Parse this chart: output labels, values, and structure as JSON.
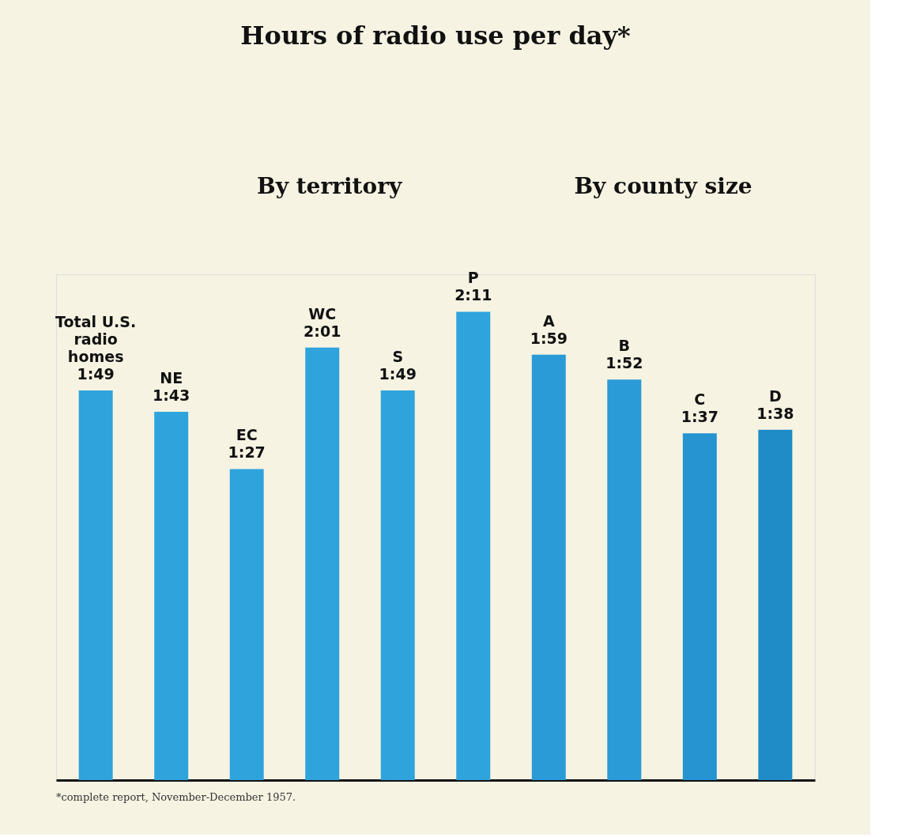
{
  "chart_data": {
    "type": "bar",
    "title": "Hours of radio use per day*",
    "categories": [
      "Total U.S. radio homes",
      "NE",
      "EC",
      "WC",
      "S",
      "P",
      "A",
      "B",
      "C",
      "D"
    ],
    "values": [
      109,
      103,
      87,
      121,
      109,
      131,
      119,
      112,
      97,
      98
    ],
    "value_labels": [
      "1:49",
      "1:43",
      "1:27",
      "2:01",
      "1:49",
      "2:11",
      "1:59",
      "1:52",
      "1:37",
      "1:38"
    ],
    "colors": [
      "#2ea3dc",
      "#2ea3dc",
      "#2ea3dc",
      "#2ea3dc",
      "#2ea3dc",
      "#2ea3dc",
      "#2a9bd6",
      "#2a9bd6",
      "#2594d0",
      "#1f8cc8"
    ],
    "annotations": [
      "By territory",
      "By county size",
      "*complete report, November-December 1957."
    ],
    "grid": false
  }
}
